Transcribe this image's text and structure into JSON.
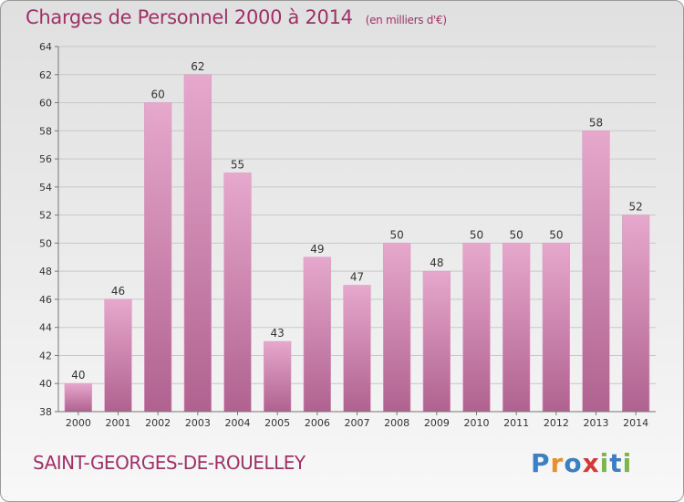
{
  "title": "Charges de Personnel 2000 à 2014",
  "unit_note": "(en milliers d'€)",
  "commune": "SAINT-GEORGES-DE-ROUELLEY",
  "logo": {
    "text": "Proxiti",
    "letters": [
      {
        "ch": "P",
        "color": "#3d7fc4"
      },
      {
        "ch": "r",
        "color": "#e8902a"
      },
      {
        "ch": "o",
        "color": "#3d7fc4"
      },
      {
        "ch": "x",
        "color": "#d23a3a"
      },
      {
        "ch": "i",
        "color": "#7ab648"
      },
      {
        "ch": "t",
        "color": "#3d7fc4"
      },
      {
        "ch": "i",
        "color": "#7ab648"
      }
    ]
  },
  "colors": {
    "bar_top": "#e6a8cc",
    "bar_bottom": "#b0628f",
    "title": "#a03068"
  },
  "chart_data": {
    "type": "bar",
    "categories": [
      "2000",
      "2001",
      "2002",
      "2003",
      "2004",
      "2005",
      "2006",
      "2007",
      "2008",
      "2009",
      "2010",
      "2011",
      "2012",
      "2013",
      "2014"
    ],
    "values": [
      40,
      46,
      60,
      62,
      55,
      43,
      49,
      47,
      50,
      48,
      50,
      50,
      50,
      58,
      52
    ],
    "ylim": [
      38,
      64
    ],
    "yticks": [
      38,
      40,
      42,
      44,
      46,
      48,
      50,
      52,
      54,
      56,
      58,
      60,
      62,
      64
    ],
    "grid": true,
    "xlabel": "",
    "ylabel": ""
  }
}
